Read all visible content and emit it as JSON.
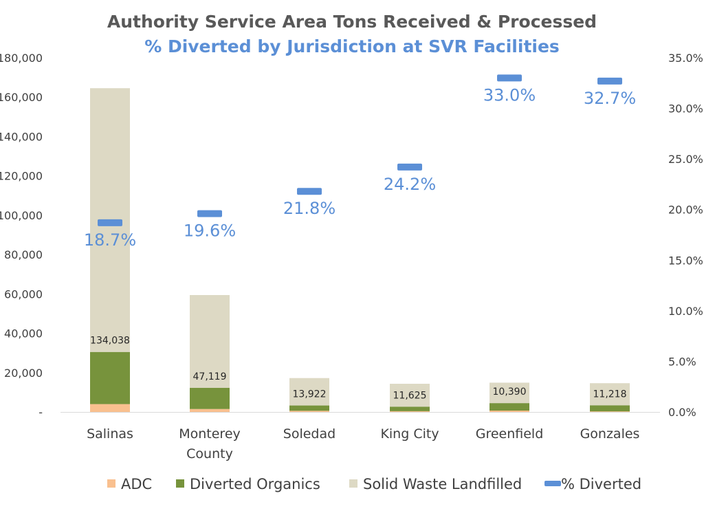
{
  "chart_data": {
    "type": "bar",
    "title": "Authority Service Area Tons Received & Processed",
    "subtitle": "% Diverted by Jurisdiction at SVR Facilities",
    "categories": [
      [
        "Salinas"
      ],
      [
        "Monterey",
        "County"
      ],
      [
        "Soledad"
      ],
      [
        "King City"
      ],
      [
        "Greenfield"
      ],
      [
        "Gonzales"
      ]
    ],
    "series": [
      {
        "name": "ADC",
        "values": [
          4000,
          1500,
          600,
          400,
          700,
          300
        ],
        "color": "#f9c08f"
      },
      {
        "name": "Diverted Organics",
        "values": [
          26500,
          10800,
          2700,
          2300,
          3800,
          3100
        ],
        "color": "#77933c"
      },
      {
        "name": "Solid Waste Landfilled",
        "values": [
          134038,
          47119,
          13922,
          11625,
          10390,
          11218
        ],
        "color": "#ddd9c4"
      }
    ],
    "line_series": {
      "name": "% Diverted",
      "values": [
        18.7,
        19.6,
        21.8,
        24.2,
        33.0,
        32.7
      ],
      "labels": [
        "18.7%",
        "19.6%",
        "21.8%",
        "24.2%",
        "33.0%",
        "32.7%"
      ],
      "color": "#5b8fd6"
    },
    "y_left": {
      "range": [
        0,
        180000
      ],
      "ticks": [
        "-",
        "20,000",
        "40,000",
        "60,000",
        "80,000",
        "100,000",
        "120,000",
        "140,000",
        "160,000",
        "180,000"
      ]
    },
    "y_right": {
      "range": [
        0,
        35
      ],
      "ticks": [
        "0.0%",
        "5.0%",
        "10.0%",
        "15.0%",
        "20.0%",
        "25.0%",
        "30.0%",
        "35.0%"
      ]
    },
    "data_labels": [
      "134,038",
      "47,119",
      "13,922",
      "11,625",
      "10,390",
      "11,218"
    ],
    "grid": false,
    "legend_position": "bottom"
  }
}
